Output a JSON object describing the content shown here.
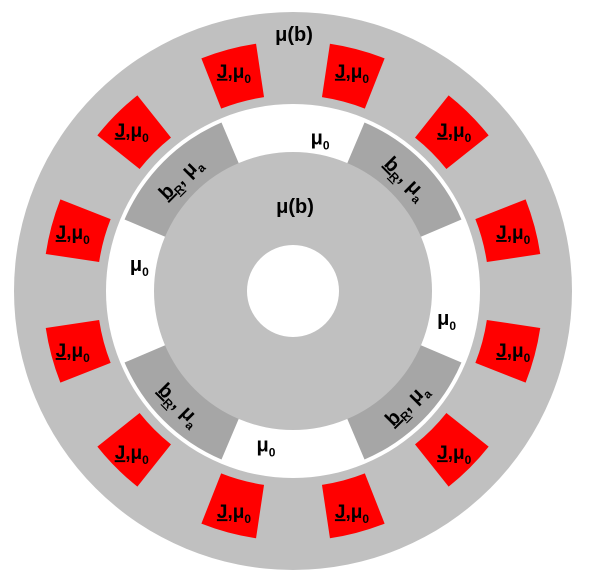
{
  "colors": {
    "background": "#ffffff",
    "stator": "#c0c0c0",
    "rotor": "#c0c0c0",
    "magnet": "#a6a6a6",
    "coil": "#ff0000",
    "air_gap": "#ffffff",
    "text": "#000000"
  },
  "stator": {
    "label": "μ(b)"
  },
  "rotor": {
    "label": "μ(b)"
  },
  "coil_label": {
    "main": "J",
    "sep": ",μ",
    "sub": "0"
  },
  "magnet_label": {
    "b": "b",
    "sub": "R",
    "mu": ", μ",
    "mu_sub": "a"
  },
  "air_label": {
    "mu": "μ",
    "sub": "0"
  },
  "coils_count": 12,
  "magnets_count": 4,
  "air_gaps_count": 4
}
